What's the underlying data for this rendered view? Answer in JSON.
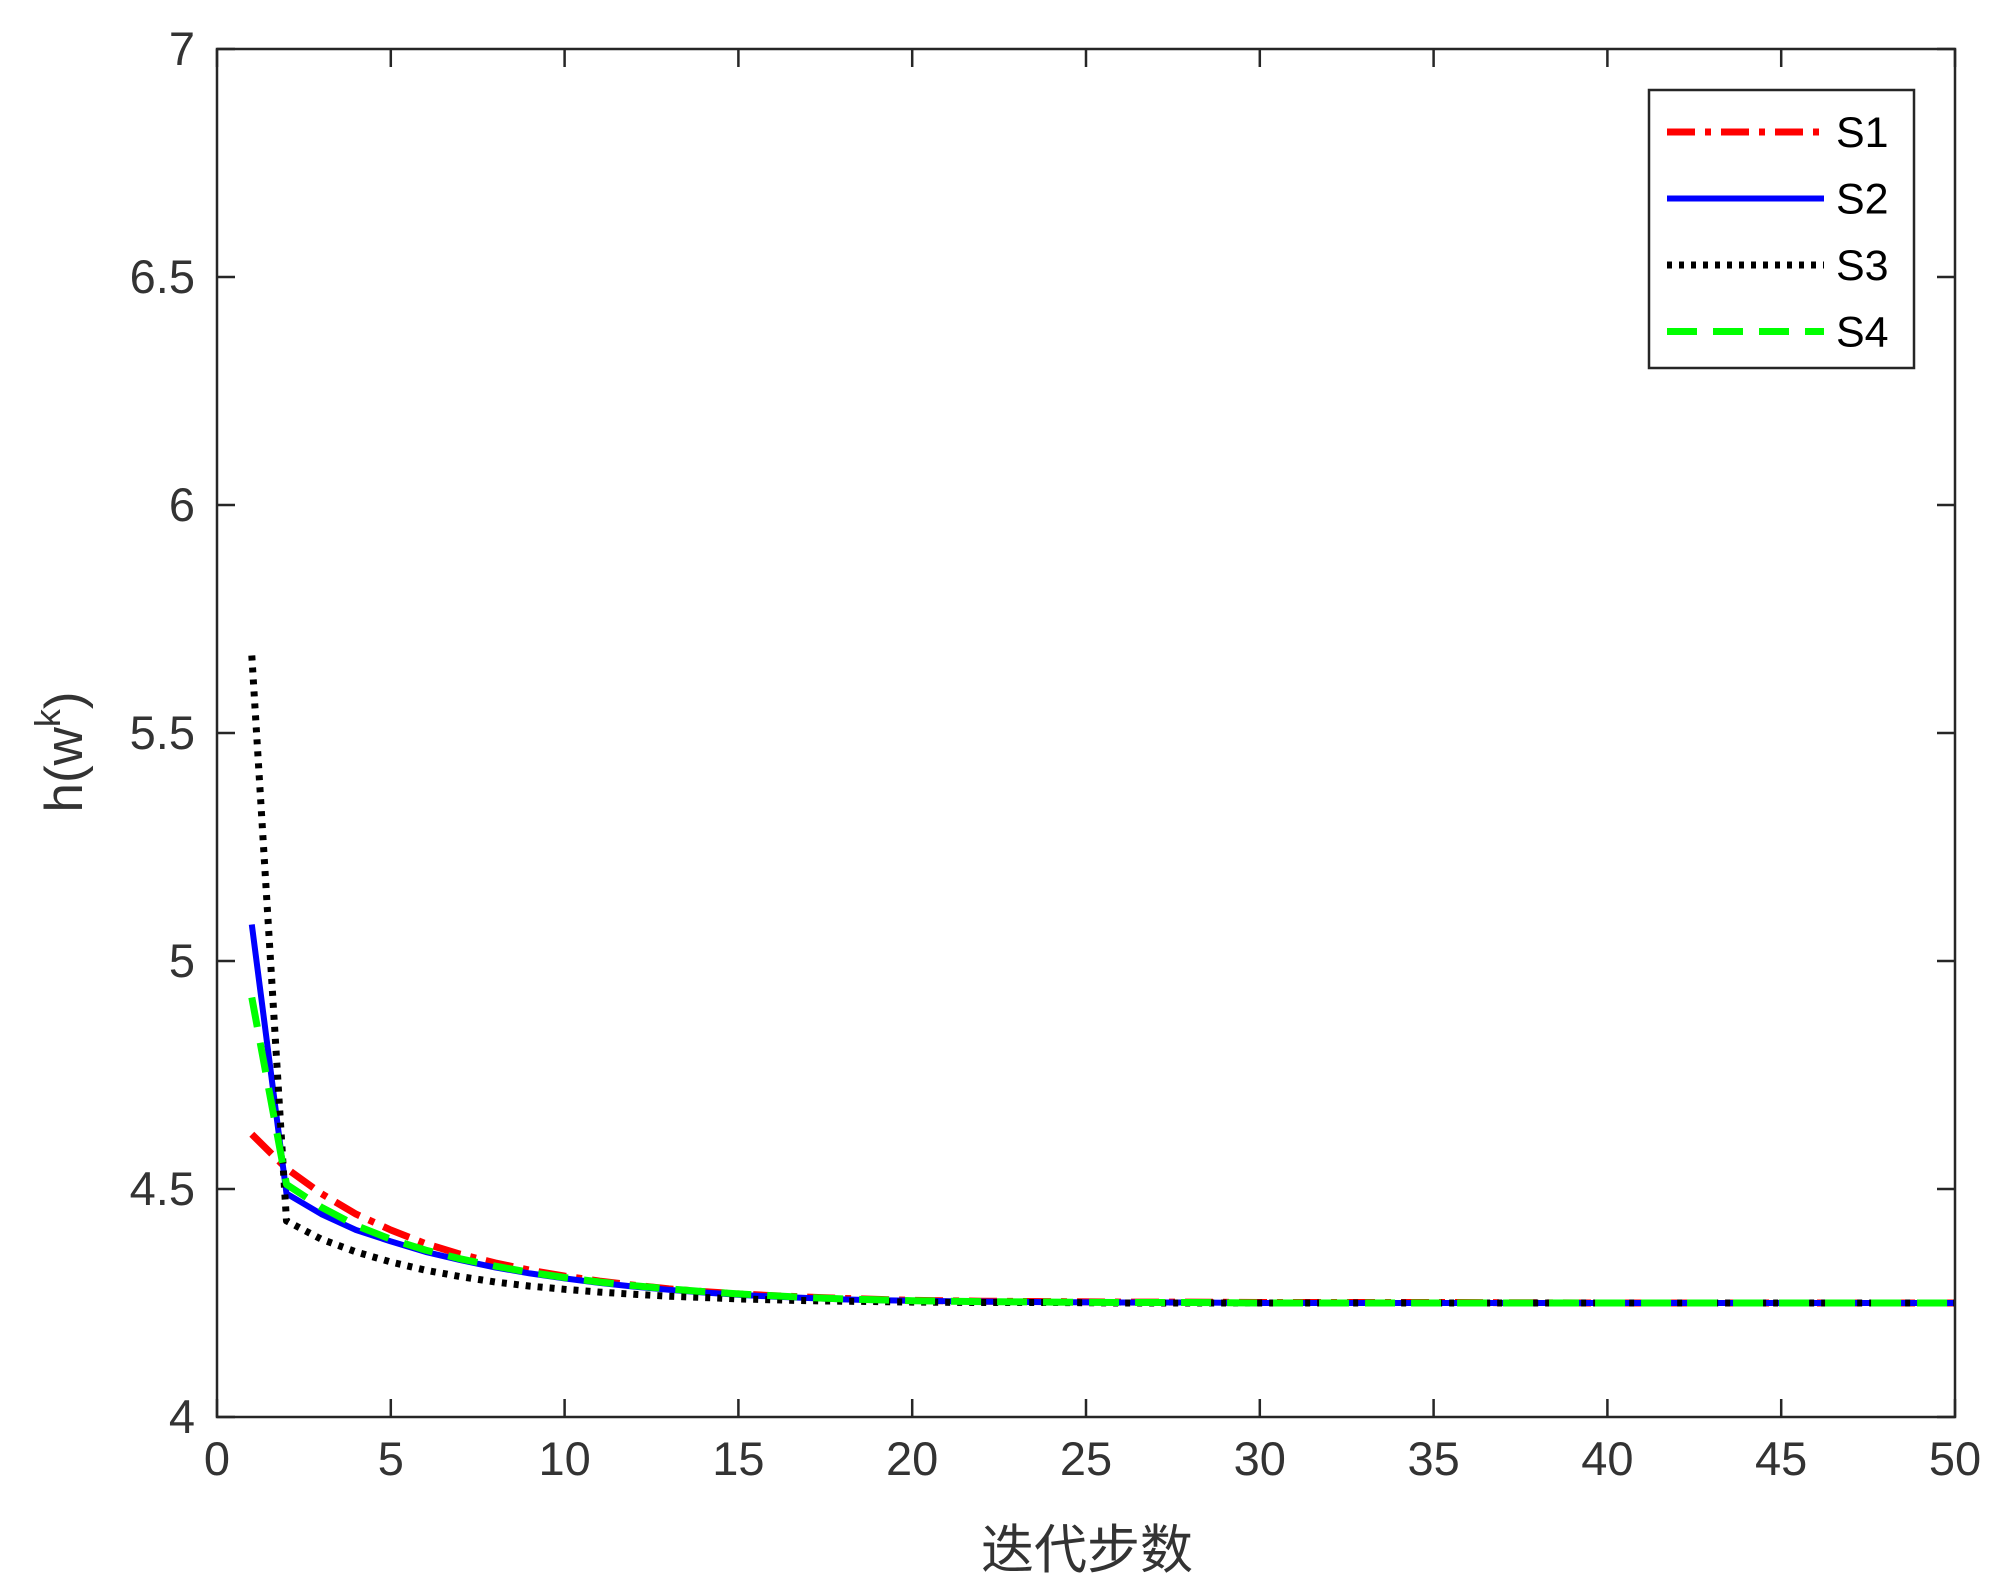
{
  "chart_data": {
    "type": "line",
    "xlabel": "迭代步数",
    "ylabel_base": "h(w",
    "ylabel_sup": "k",
    "ylabel_close": ")",
    "xlim": [
      0,
      50
    ],
    "ylim": [
      4,
      7
    ],
    "xticks": [
      0,
      5,
      10,
      15,
      20,
      25,
      30,
      35,
      40,
      45,
      50
    ],
    "yticks": [
      4,
      4.5,
      5,
      5.5,
      6,
      6.5,
      7
    ],
    "grid": false,
    "legend_position": "top-right",
    "series": [
      {
        "name": "S1",
        "color": "#ff0000",
        "style": "dashdot",
        "x": [
          1,
          2,
          3,
          4,
          5,
          6,
          7,
          8,
          9,
          10,
          11,
          12,
          13,
          14,
          15,
          16,
          17,
          18,
          19,
          20,
          22,
          24,
          26,
          28,
          30,
          35,
          40,
          45,
          50
        ],
        "y": [
          4.62,
          4.545,
          4.49,
          4.445,
          4.41,
          4.38,
          4.357,
          4.338,
          4.322,
          4.309,
          4.298,
          4.289,
          4.281,
          4.275,
          4.27,
          4.266,
          4.263,
          4.26,
          4.258,
          4.256,
          4.254,
          4.253,
          4.252,
          4.252,
          4.251,
          4.251,
          4.25,
          4.25,
          4.25
        ]
      },
      {
        "name": "S2",
        "color": "#0000ff",
        "style": "solid",
        "x": [
          1,
          2,
          3,
          4,
          5,
          6,
          7,
          8,
          9,
          10,
          11,
          12,
          13,
          14,
          15,
          16,
          17,
          18,
          19,
          20,
          22,
          24,
          26,
          28,
          30,
          35,
          40,
          45,
          50
        ],
        "y": [
          5.08,
          4.49,
          4.445,
          4.41,
          4.385,
          4.362,
          4.344,
          4.328,
          4.315,
          4.304,
          4.294,
          4.286,
          4.279,
          4.273,
          4.268,
          4.264,
          4.261,
          4.258,
          4.256,
          4.255,
          4.253,
          4.252,
          4.251,
          4.251,
          4.25,
          4.25,
          4.25,
          4.25,
          4.25
        ]
      },
      {
        "name": "S3",
        "color": "#000000",
        "style": "dotted",
        "x": [
          1,
          2,
          3,
          4,
          5,
          6,
          7,
          8,
          9,
          10,
          11,
          12,
          13,
          14,
          15,
          16,
          17,
          18,
          19,
          20,
          22,
          24,
          26,
          28,
          30,
          35,
          40,
          45,
          50
        ],
        "y": [
          5.67,
          4.43,
          4.39,
          4.362,
          4.34,
          4.322,
          4.308,
          4.296,
          4.287,
          4.28,
          4.274,
          4.269,
          4.265,
          4.262,
          4.259,
          4.257,
          4.255,
          4.254,
          4.253,
          4.252,
          4.251,
          4.251,
          4.25,
          4.25,
          4.25,
          4.25,
          4.25,
          4.25,
          4.25
        ]
      },
      {
        "name": "S4",
        "color": "#00ff00",
        "style": "dashed",
        "x": [
          1,
          2,
          3,
          4,
          5,
          6,
          7,
          8,
          9,
          10,
          11,
          12,
          13,
          14,
          15,
          16,
          17,
          18,
          19,
          20,
          22,
          24,
          26,
          28,
          30,
          35,
          40,
          45,
          50
        ],
        "y": [
          4.92,
          4.51,
          4.46,
          4.42,
          4.39,
          4.366,
          4.347,
          4.331,
          4.317,
          4.306,
          4.296,
          4.288,
          4.281,
          4.275,
          4.27,
          4.266,
          4.262,
          4.259,
          4.257,
          4.255,
          4.253,
          4.252,
          4.251,
          4.251,
          4.25,
          4.25,
          4.25,
          4.25,
          4.25
        ]
      }
    ]
  }
}
